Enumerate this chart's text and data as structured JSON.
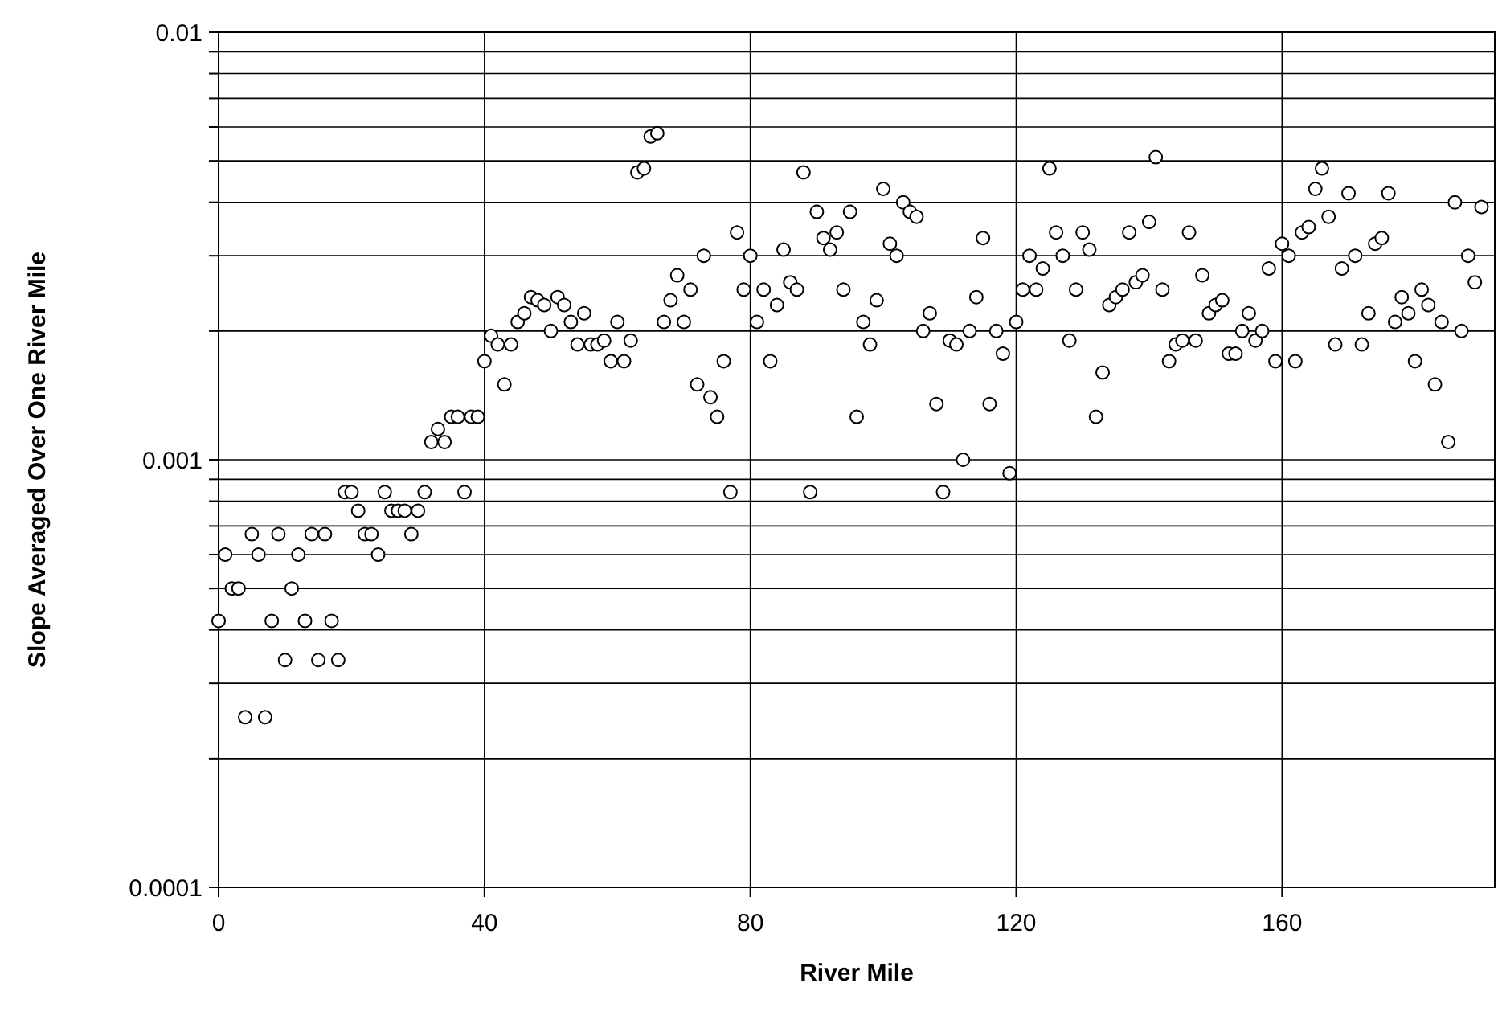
{
  "chart_data": {
    "type": "scatter",
    "xlabel": "River Mile",
    "ylabel": "Slope Averaged Over One River Mile",
    "xlim": [
      0,
      192
    ],
    "xticks": [
      0,
      40,
      80,
      120,
      160
    ],
    "ylim": [
      0.0001,
      0.01
    ],
    "yticks": [
      {
        "value": 0.0001,
        "label": "0.0001"
      },
      {
        "value": 0.0002,
        "label": null
      },
      {
        "value": 0.0003,
        "label": null
      },
      {
        "value": 0.0004,
        "label": null
      },
      {
        "value": 0.0005,
        "label": null
      },
      {
        "value": 0.0006,
        "label": null
      },
      {
        "value": 0.0007,
        "label": null
      },
      {
        "value": 0.0008,
        "label": null
      },
      {
        "value": 0.0009,
        "label": null
      },
      {
        "value": 0.001,
        "label": "0.001"
      },
      {
        "value": 0.002,
        "label": null
      },
      {
        "value": 0.003,
        "label": null
      },
      {
        "value": 0.004,
        "label": null
      },
      {
        "value": 0.005,
        "label": null
      },
      {
        "value": 0.006,
        "label": null
      },
      {
        "value": 0.007,
        "label": null
      },
      {
        "value": 0.008,
        "label": null
      },
      {
        "value": 0.009,
        "label": null
      },
      {
        "value": 0.01,
        "label": "0.01"
      }
    ],
    "log": "y",
    "grid": true,
    "marker": "circle",
    "x": [
      0,
      1,
      2,
      3,
      4,
      5,
      6,
      7,
      8,
      9,
      10,
      11,
      12,
      13,
      14,
      15,
      16,
      17,
      18,
      19,
      20,
      21,
      22,
      23,
      24,
      25,
      26,
      27,
      28,
      29,
      30,
      31,
      32,
      33,
      34,
      35,
      36,
      37,
      38,
      39,
      40,
      41,
      42,
      43,
      44,
      45,
      46,
      47,
      48,
      49,
      50,
      51,
      52,
      53,
      54,
      55,
      56,
      57,
      58,
      59,
      60,
      61,
      62,
      63,
      64,
      65,
      66,
      67,
      68,
      69,
      70,
      71,
      72,
      73,
      74,
      75,
      76,
      77,
      78,
      79,
      80,
      81,
      82,
      83,
      84,
      85,
      86,
      87,
      88,
      89,
      90,
      91,
      92,
      93,
      94,
      95,
      96,
      97,
      98,
      99,
      100,
      101,
      102,
      103,
      104,
      105,
      106,
      107,
      108,
      109,
      110,
      111,
      112,
      113,
      114,
      115,
      116,
      117,
      118,
      119,
      120,
      121,
      122,
      123,
      124,
      125,
      126,
      127,
      128,
      129,
      130,
      131,
      132,
      133,
      134,
      135,
      136,
      137,
      138,
      139,
      140,
      141,
      142,
      143,
      144,
      145,
      146,
      147,
      148,
      149,
      150,
      151,
      152,
      153,
      154,
      155,
      156,
      157,
      158,
      159,
      160,
      161,
      162,
      163,
      164,
      165,
      166,
      167,
      168,
      169,
      170,
      171,
      172,
      173,
      174,
      175,
      176,
      177,
      178,
      179,
      180,
      181,
      182,
      183,
      184,
      185,
      186,
      187,
      188,
      189,
      190
    ],
    "series": [
      {
        "color": "#000000",
        "values": [
          0.00042,
          0.0006,
          0.0005,
          0.0005,
          0.00025,
          0.00067,
          0.0006,
          0.00025,
          0.00042,
          0.00067,
          0.00034,
          0.0005,
          0.0006,
          0.00042,
          0.00067,
          0.00034,
          0.00067,
          0.00042,
          0.00034,
          0.00084,
          0.00084,
          0.00076,
          0.00067,
          0.00067,
          0.0006,
          0.00084,
          0.00076,
          0.00076,
          0.00076,
          0.00067,
          0.00076,
          0.00084,
          0.0011,
          0.00118,
          0.0011,
          0.00126,
          0.00126,
          0.00084,
          0.00126,
          0.00126,
          0.0017,
          0.00195,
          0.00186,
          0.0015,
          0.00186,
          0.0021,
          0.0022,
          0.0024,
          0.00236,
          0.0023,
          0.002,
          0.0024,
          0.0023,
          0.0021,
          0.00186,
          0.0022,
          0.00186,
          0.00186,
          0.0019,
          0.0017,
          0.0021,
          0.0017,
          0.0019,
          0.0047,
          0.0048,
          0.0057,
          0.0058,
          0.0021,
          0.00236,
          0.0027,
          0.0021,
          0.0025,
          0.0015,
          0.003,
          0.0014,
          0.00126,
          0.0017,
          0.00084,
          0.0034,
          0.0025,
          0.003,
          0.0021,
          0.0025,
          0.0017,
          0.0023,
          0.0031,
          0.0026,
          0.0025,
          0.0047,
          0.00084,
          0.0038,
          0.0033,
          0.0031,
          0.0034,
          0.0025,
          0.0038,
          0.00126,
          0.0021,
          0.00186,
          0.00236,
          0.0043,
          0.0032,
          0.003,
          0.004,
          0.0038,
          0.0037,
          0.002,
          0.0022,
          0.00135,
          0.00084,
          0.0019,
          0.00186,
          0.001,
          0.002,
          0.0024,
          0.0033,
          0.00135,
          0.002,
          0.00177,
          0.00093,
          0.0021,
          0.0025,
          0.003,
          0.0025,
          0.0028,
          0.0048,
          0.0034,
          0.003,
          0.0019,
          0.0025,
          0.0034,
          0.0031,
          0.00126,
          0.0016,
          0.0023,
          0.0024,
          0.0025,
          0.0034,
          0.0026,
          0.0027,
          0.0036,
          0.0051,
          0.0025,
          0.0017,
          0.00186,
          0.0019,
          0.0034,
          0.0019,
          0.0027,
          0.0022,
          0.0023,
          0.00236,
          0.00177,
          0.00177,
          0.002,
          0.0022,
          0.0019,
          0.002,
          0.0028,
          0.0017,
          0.0032,
          0.003,
          0.0017,
          0.0034,
          0.0035,
          0.0043,
          0.0048,
          0.0037,
          0.00186,
          0.0028,
          0.0042,
          0.003,
          0.00186,
          0.0022,
          0.0032,
          0.0033,
          0.0042,
          0.0021,
          0.0024,
          0.0022,
          0.0017,
          0.0025,
          0.0023,
          0.0015,
          0.0021,
          0.0011,
          0.004,
          0.002,
          0.003,
          0.0026,
          0.0039
        ]
      }
    ]
  }
}
